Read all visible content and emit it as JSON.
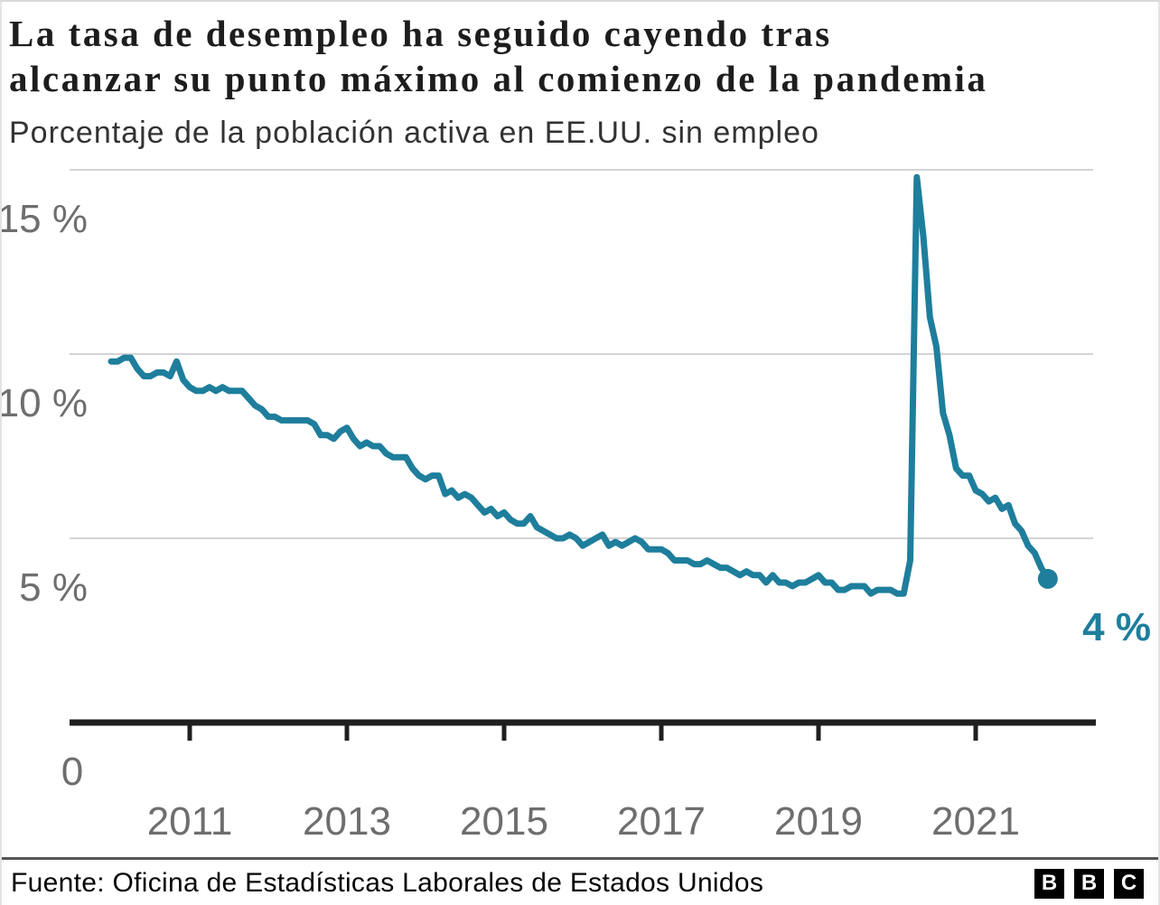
{
  "header": {
    "title_line1": "La tasa de desempleo ha seguido cayendo tras",
    "title_line2": "alcanzar su punto máximo al comienzo de la pandemia",
    "subtitle": "Porcentaje de la población activa en EE.UU. sin empleo"
  },
  "chart_data": {
    "type": "line",
    "frequency": "monthly",
    "start": {
      "year": 2010,
      "month": 1
    },
    "end": {
      "year": 2021,
      "month": 12
    },
    "values": [
      9.8,
      9.8,
      9.9,
      9.9,
      9.6,
      9.4,
      9.4,
      9.5,
      9.5,
      9.4,
      9.8,
      9.3,
      9.1,
      9.0,
      9.0,
      9.1,
      9.0,
      9.1,
      9.0,
      9.0,
      9.0,
      8.8,
      8.6,
      8.5,
      8.3,
      8.3,
      8.2,
      8.2,
      8.2,
      8.2,
      8.2,
      8.1,
      7.8,
      7.8,
      7.7,
      7.9,
      8.0,
      7.7,
      7.5,
      7.6,
      7.5,
      7.5,
      7.3,
      7.2,
      7.2,
      7.2,
      6.9,
      6.7,
      6.6,
      6.7,
      6.7,
      6.2,
      6.3,
      6.1,
      6.2,
      6.1,
      5.9,
      5.7,
      5.8,
      5.6,
      5.7,
      5.5,
      5.4,
      5.4,
      5.6,
      5.3,
      5.2,
      5.1,
      5.0,
      5.0,
      5.1,
      5.0,
      4.8,
      4.9,
      5.0,
      5.1,
      4.8,
      4.9,
      4.8,
      4.9,
      5.0,
      4.9,
      4.7,
      4.7,
      4.7,
      4.6,
      4.4,
      4.4,
      4.4,
      4.3,
      4.3,
      4.4,
      4.3,
      4.2,
      4.2,
      4.1,
      4.0,
      4.1,
      4.0,
      4.0,
      3.8,
      4.0,
      3.8,
      3.8,
      3.7,
      3.8,
      3.8,
      3.9,
      4.0,
      3.8,
      3.8,
      3.6,
      3.6,
      3.7,
      3.7,
      3.7,
      3.5,
      3.6,
      3.6,
      3.6,
      3.5,
      3.5,
      4.4,
      14.8,
      13.2,
      11.0,
      10.2,
      8.4,
      7.8,
      6.9,
      6.7,
      6.7,
      6.3,
      6.2,
      6.0,
      6.1,
      5.8,
      5.9,
      5.4,
      5.2,
      4.8,
      4.6,
      4.2,
      3.9
    ],
    "end_label": "4 %",
    "x_axis": {
      "ticks": [
        "2011",
        "2013",
        "2015",
        "2017",
        "2019",
        "2021"
      ]
    },
    "y_axis": {
      "range": [
        0,
        16
      ],
      "ticks": [
        {
          "value": 15,
          "label": "15 %"
        },
        {
          "value": 10,
          "label": "10 %"
        },
        {
          "value": 5,
          "label": "5 %"
        },
        {
          "value": 0,
          "label": "0"
        }
      ]
    },
    "grid": "horizontal-only",
    "legend": "none"
  },
  "footer": {
    "source": "Fuente: Oficina de Estadísticas Laborales de Estados Unidos",
    "logo_letters": [
      "B",
      "B",
      "C"
    ]
  },
  "colors": {
    "line": "#1e7e9c",
    "accent_label": "#1e7e9c",
    "grid": "#d4d4d4",
    "axis": "#1f1f1f",
    "tick_label": "#6e6e6e",
    "title": "#1d1d1d",
    "subtitle": "#333333"
  }
}
